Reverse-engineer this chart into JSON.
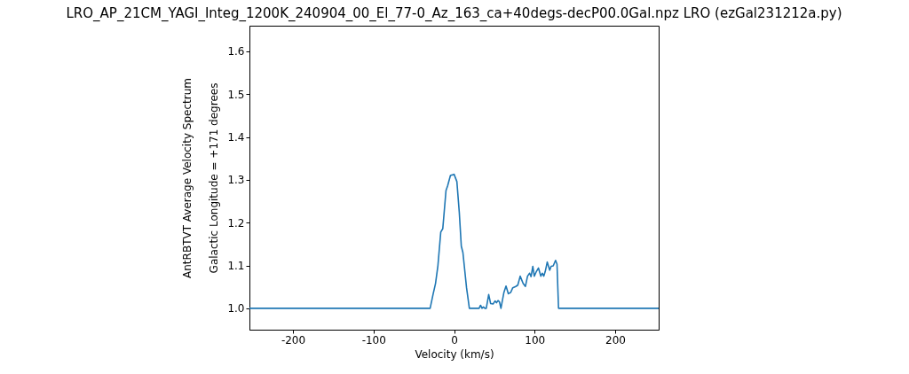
{
  "chart_data": {
    "type": "line",
    "title": "LRO_AP_21CM_YAGI_Integ_1200K_240904_00_El_77-0_Az_163_ca+40degs-decP00.0Gal.npz            LRO           (ezGal231212a.py)",
    "xlabel": "Velocity (km/s)",
    "ylabel": [
      "AntRBTVT Average Velocity Spectrum",
      "Galactic Longitude = +171 degrees"
    ],
    "x": [
      -254,
      -29.7,
      -26,
      -23,
      -20,
      -16.5,
      -14,
      -10,
      -8,
      -4.5,
      0,
      3.5,
      6.5,
      9,
      11,
      15.5,
      19,
      31.1,
      32.9,
      34.7,
      36.5,
      38.3,
      40,
      43,
      45.4,
      48.4,
      50.9,
      52.7,
      54.6,
      56.4,
      58.2,
      61.9,
      64.5,
      67.4,
      70.3,
      72.9,
      76.6,
      79.1,
      82.1,
      85.7,
      88.6,
      91.2,
      93.8,
      95.6,
      97.8,
      99.6,
      102.2,
      104.8,
      107.7,
      109.5,
      111.4,
      113.2,
      115.7,
      118.7,
      120.5,
      123.1,
      126,
      127.8,
      129.7,
      254
    ],
    "series": [
      {
        "color": "#1f77b4",
        "values": [
          1.0,
          1.0,
          1.033,
          1.058,
          1.1,
          1.178,
          1.186,
          1.275,
          1.286,
          1.31,
          1.313,
          1.296,
          1.224,
          1.145,
          1.13,
          1.048,
          1.0,
          1.0,
          1.007,
          1.0,
          1.003,
          1.0,
          1.0,
          1.032,
          1.011,
          1.01,
          1.017,
          1.013,
          1.018,
          1.015,
          1.0,
          1.037,
          1.052,
          1.034,
          1.037,
          1.048,
          1.051,
          1.054,
          1.075,
          1.058,
          1.051,
          1.075,
          1.082,
          1.074,
          1.098,
          1.075,
          1.086,
          1.094,
          1.075,
          1.082,
          1.075,
          1.086,
          1.108,
          1.089,
          1.098,
          1.099,
          1.112,
          1.103,
          1.0,
          1.0
        ]
      }
    ],
    "xlim": [
      -254,
      254
    ],
    "ylim": [
      0.95,
      1.66
    ],
    "xticks": [
      -200,
      -100,
      0,
      100,
      200
    ],
    "yticks": [
      {
        "value": 1,
        "label": "1.0"
      },
      1.1,
      1.2,
      1.3,
      1.4,
      1.5,
      1.6
    ],
    "grid": false,
    "marker": "none",
    "line_style": "solid"
  }
}
